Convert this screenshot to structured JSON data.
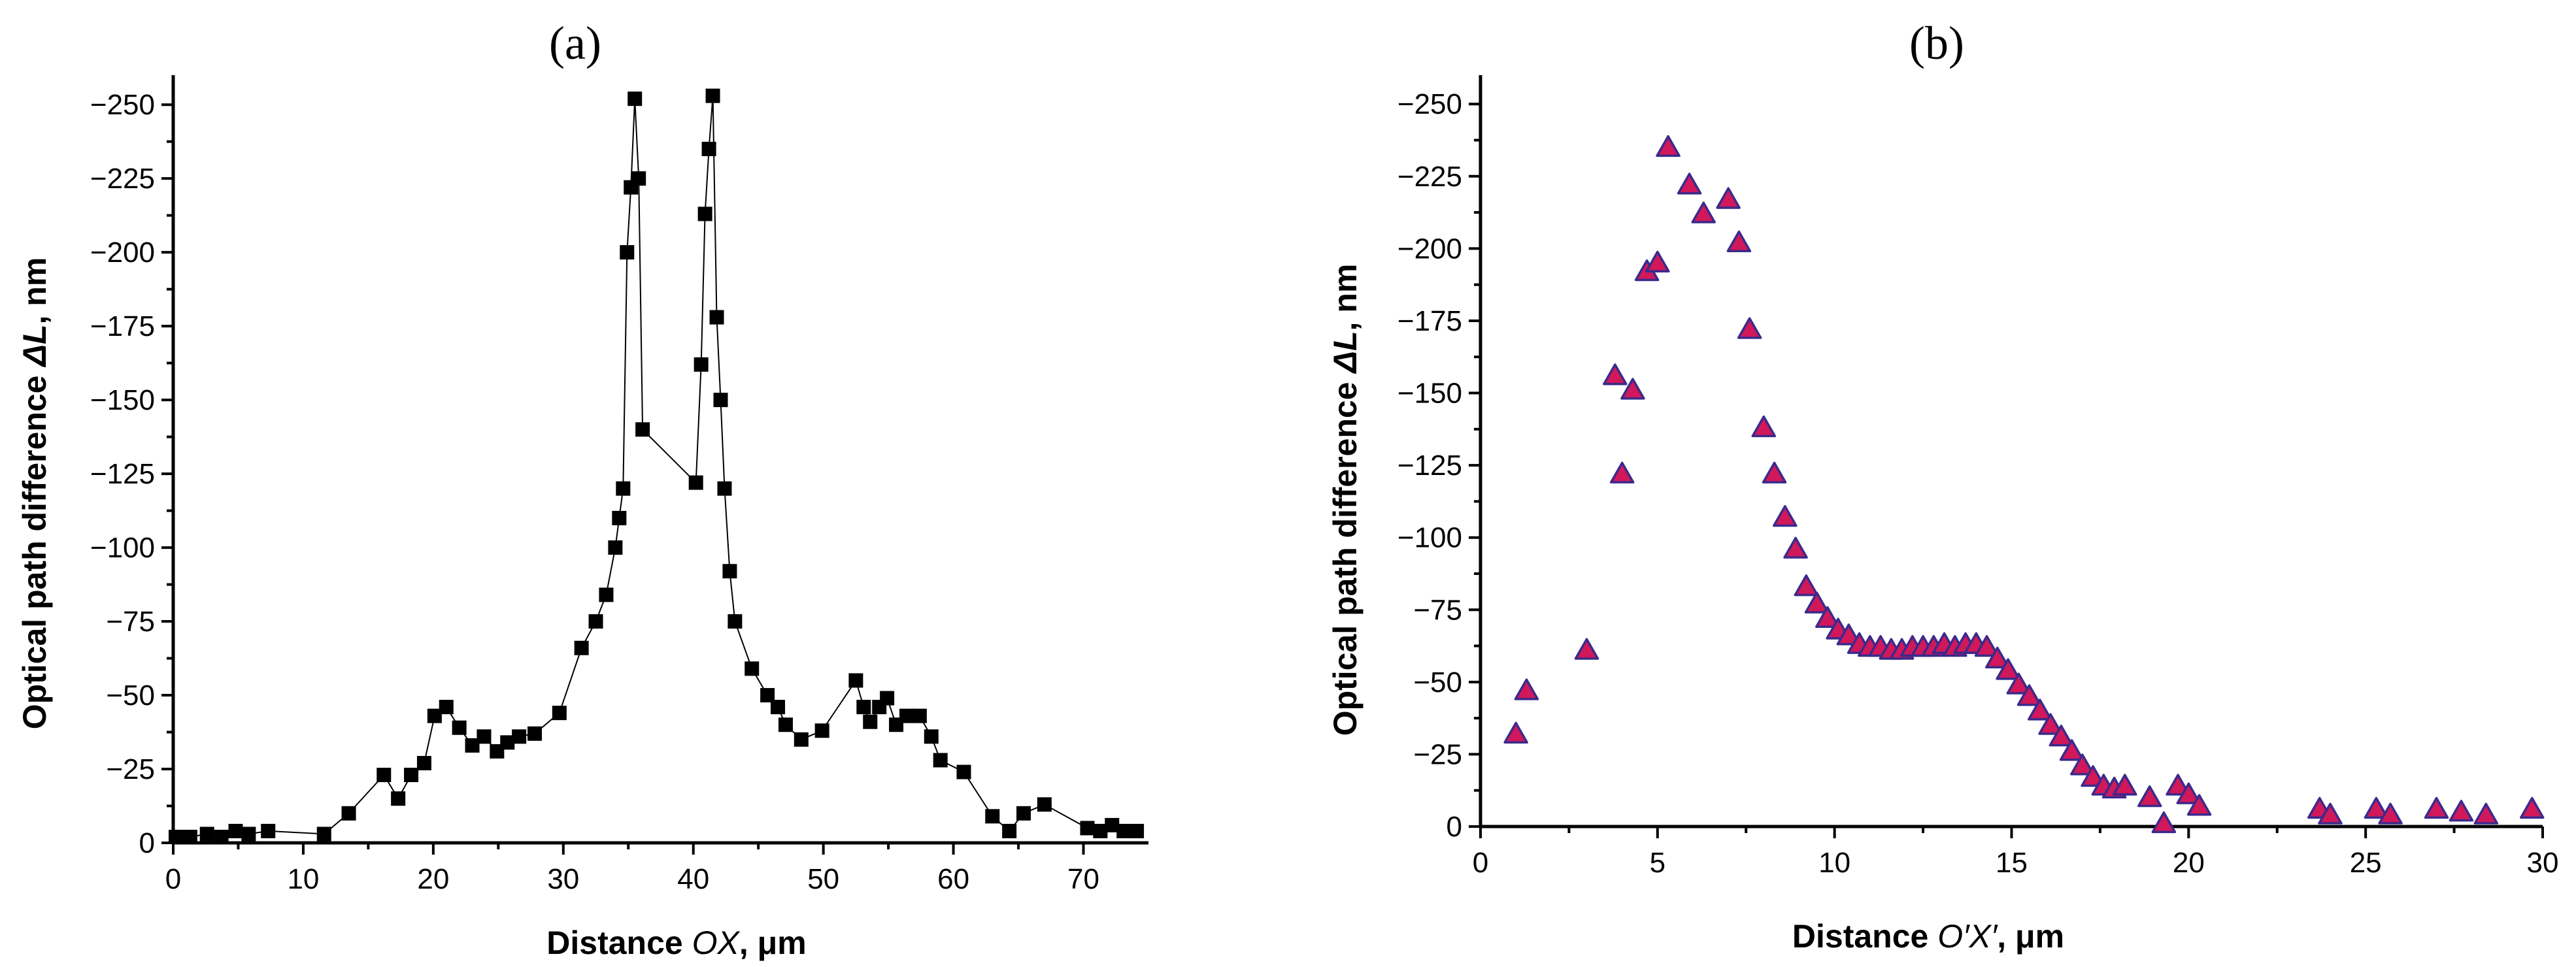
{
  "chart_data": [
    {
      "type": "line",
      "panel_label": "(a)",
      "xlabel_prefix": "Distance ",
      "xlabel_var": "OX",
      "xlabel_suffix": ", μm",
      "ylabel_prefix": "Optical path difference ",
      "ylabel_var": "ΔL",
      "ylabel_suffix": ", nm",
      "xlim": [
        0,
        75
      ],
      "ylim": [
        0,
        -260
      ],
      "xticks": [
        0,
        10,
        20,
        30,
        40,
        50,
        60,
        70
      ],
      "xtick_labels": [
        "0",
        "10",
        "20",
        "30",
        "40",
        "50",
        "60",
        "70"
      ],
      "yticks": [
        0,
        -25,
        -50,
        -75,
        -100,
        -125,
        -150,
        -175,
        -200,
        -225,
        -250
      ],
      "ytick_labels": [
        "0",
        "-25",
        "-50",
        "-75",
        "-100",
        "-125",
        "-150",
        "-175",
        "-200",
        "-225",
        "-250"
      ],
      "marker": "square",
      "marker_color": "#000000",
      "line_color": "#000000",
      "grid": false,
      "series": [
        {
          "x": [
            0.2,
            1.3,
            2.6,
            3.7,
            4.8,
            5.8,
            7.3,
            11.6,
            13.5,
            16.2,
            17.3,
            18.3,
            19.3,
            20.1,
            21.0,
            22.0,
            23.0,
            23.9,
            24.9,
            25.7,
            26.6,
            27.8,
            29.7,
            31.4,
            32.5,
            33.3,
            34.0,
            34.3,
            34.6,
            34.9,
            35.2,
            35.5,
            35.8,
            36.1,
            40.2,
            40.6,
            40.9,
            41.2,
            41.5,
            41.8,
            42.1,
            42.4,
            42.8,
            43.2,
            44.5,
            45.7,
            46.5,
            47.1,
            48.3,
            49.9,
            52.5,
            53.1,
            53.6,
            54.3,
            54.9,
            55.6,
            56.4,
            57.4,
            58.3,
            59.0,
            60.8,
            63.0,
            64.3,
            65.4,
            67.0,
            70.3,
            71.3,
            72.2,
            73.1,
            74.1
          ],
          "y": [
            -2,
            -2,
            -3,
            -2,
            -4,
            -3,
            -4,
            -3,
            -10,
            -23,
            -15,
            -23,
            -27,
            -43,
            -46,
            -39,
            -33,
            -36,
            -31,
            -34,
            -36,
            -37,
            -44,
            -66,
            -75,
            -84,
            -100,
            -110,
            -120,
            -200,
            -222,
            -252,
            -225,
            -140,
            -122,
            -162,
            -213,
            -235,
            -253,
            -178,
            -150,
            -120,
            -92,
            -75,
            -59,
            -50,
            -46,
            -40,
            -35,
            -38,
            -55,
            -46,
            -41,
            -46,
            -49,
            -40,
            -43,
            -43,
            -36,
            -28,
            -24,
            -9,
            -4,
            -10,
            -13,
            -5,
            -4,
            -6,
            -4,
            -4
          ]
        }
      ]
    },
    {
      "type": "scatter",
      "panel_label": "(b)",
      "xlabel_prefix": "Distance ",
      "xlabel_var": "O′X′",
      "xlabel_suffix": ", μm",
      "ylabel_prefix": "Optical path difference ",
      "ylabel_var": "ΔL",
      "ylabel_suffix": ", nm",
      "xlim": [
        0,
        30
      ],
      "ylim": [
        0,
        -260
      ],
      "xticks": [
        0,
        5,
        10,
        15,
        20,
        25,
        30
      ],
      "xtick_labels": [
        "0",
        "5",
        "10",
        "15",
        "20",
        "25",
        "30"
      ],
      "yticks": [
        0,
        -25,
        -50,
        -75,
        -100,
        -125,
        -150,
        -175,
        -200,
        -225,
        -250
      ],
      "ytick_labels": [
        "0",
        "-25",
        "-50",
        "-75",
        "-100",
        "-125",
        "-150",
        "-175",
        "-200",
        "-225",
        "-250"
      ],
      "marker": "triangle",
      "marker_fill": "#d0185a",
      "marker_edge": "#3b2a8c",
      "grid": false,
      "series": [
        {
          "x": [
            1.0,
            1.3,
            3.0,
            3.8,
            4.0,
            4.3,
            4.7,
            5.0,
            5.3,
            5.9,
            6.3,
            7.0,
            7.3,
            7.6,
            8.0,
            8.3,
            8.6,
            8.9,
            9.2,
            9.5,
            9.8,
            10.1,
            10.4,
            10.7,
            11.0,
            11.3,
            11.6,
            11.9,
            12.2,
            12.5,
            12.8,
            13.1,
            13.4,
            13.7,
            14.0,
            14.3,
            14.6,
            14.9,
            15.2,
            15.5,
            15.8,
            16.1,
            16.4,
            16.7,
            17.0,
            17.3,
            17.6,
            17.9,
            18.2,
            18.9,
            19.3,
            19.7,
            20.0,
            20.3,
            23.7,
            24.0,
            25.3,
            25.7,
            27.0,
            27.7,
            28.4,
            29.7
          ],
          "y": [
            -32,
            -47,
            -61,
            -156,
            -122,
            -151,
            -192,
            -195,
            -235,
            -222,
            -212,
            -217,
            -202,
            -172,
            -138,
            -122,
            -107,
            -96,
            -83,
            -77,
            -72,
            -68,
            -66,
            -63,
            -62,
            -62,
            -61,
            -61,
            -62,
            -62,
            -62,
            -63,
            -62,
            -63,
            -63,
            -62,
            -58,
            -54,
            -49,
            -45,
            -40,
            -35,
            -31,
            -26,
            -21,
            -17,
            -14,
            -13,
            -14,
            -10,
            -1,
            -14,
            -11,
            -7,
            -6,
            -4,
            -6,
            -4,
            -6,
            -5,
            -4,
            -6
          ]
        }
      ]
    }
  ]
}
